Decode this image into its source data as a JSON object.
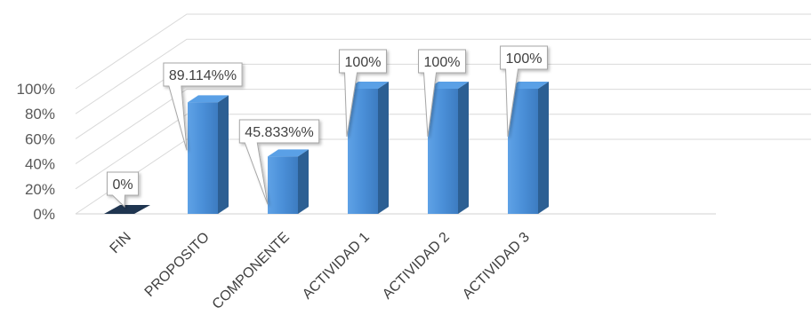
{
  "chart_data": {
    "type": "bar",
    "title": "",
    "xlabel": "",
    "ylabel": "",
    "categories": [
      "FIN",
      "PROPOSITO",
      "COMPONENTE",
      "ACTIVIDAD 1",
      "ACTIVIDAD 2",
      "ACTIVIDAD 3"
    ],
    "values": [
      0,
      89.114,
      45.833,
      100,
      100,
      100
    ],
    "data_labels": [
      "0%",
      "89.114%%",
      "45.833%%",
      "100%",
      "100%",
      "100%"
    ],
    "y_ticks": [
      "0%",
      "20%",
      "40%",
      "60%",
      "80%",
      "100%"
    ],
    "ylim": [
      0,
      100
    ],
    "grid": true,
    "legend": "none",
    "style": "3d-column",
    "colors": {
      "bar_front": "#4a8fd8",
      "bar_side": "#2c5f93",
      "bar_top": "#5aa0e6",
      "bar_zero": "#1f3550",
      "grid": "#d9d9d9",
      "text": "#595959"
    }
  }
}
